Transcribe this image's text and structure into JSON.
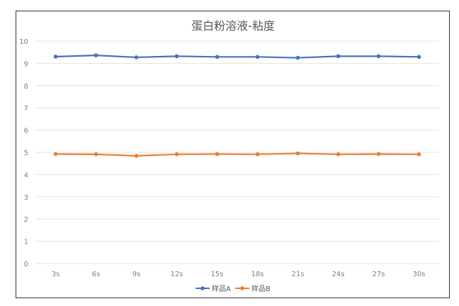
{
  "chart_data": {
    "type": "line",
    "title": "蛋白粉溶液-粘度",
    "categories": [
      "3s",
      "6s",
      "9s",
      "12s",
      "15s",
      "18s",
      "21s",
      "24s",
      "27s",
      "30s"
    ],
    "series": [
      {
        "name": "样品A",
        "color": "#4472c4",
        "values": [
          9.3,
          9.36,
          9.27,
          9.32,
          9.29,
          9.29,
          9.25,
          9.32,
          9.32,
          9.29
        ]
      },
      {
        "name": "样品B",
        "color": "#ed7d31",
        "values": [
          4.92,
          4.91,
          4.84,
          4.91,
          4.92,
          4.91,
          4.95,
          4.91,
          4.92,
          4.91
        ]
      }
    ],
    "ylim": [
      0,
      10
    ],
    "yticks": [
      "0",
      "1",
      "2",
      "3",
      "4",
      "5",
      "6",
      "7",
      "8",
      "9",
      "10"
    ],
    "grid": true,
    "legend": "bottom"
  }
}
